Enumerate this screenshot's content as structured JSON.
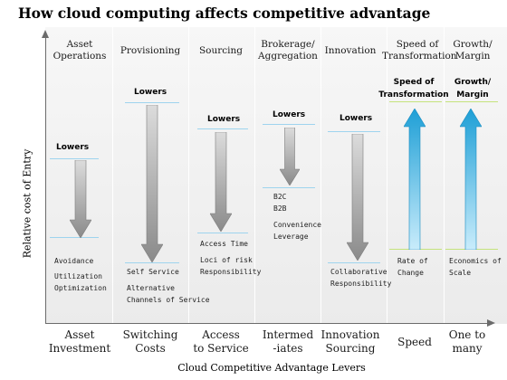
{
  "title": "How cloud computing affects competitive advantage",
  "axes": {
    "y_label": "Relative cost of Entry",
    "x_label": "Cloud Competitive Advantage Levers"
  },
  "columns": [
    {
      "id": "asset",
      "header": [
        "Asset",
        "Operations"
      ],
      "footer": [
        "Asset",
        "Investment"
      ],
      "tag": "Lowers",
      "direction": "down",
      "notes": [
        "Avoidance",
        "Utilization",
        "Optimization"
      ]
    },
    {
      "id": "provisioning",
      "header": [
        "Provisioning"
      ],
      "footer": [
        "Switching",
        "Costs"
      ],
      "tag": "Lowers",
      "direction": "down",
      "notes": [
        "Self Service",
        "Alternative",
        "Channels of Service"
      ]
    },
    {
      "id": "sourcing",
      "header": [
        "Sourcing"
      ],
      "footer": [
        "Access",
        "to Service"
      ],
      "tag": "Lowers",
      "direction": "down",
      "notes": [
        "Access Time",
        "Loci of risk",
        "Responsibility"
      ]
    },
    {
      "id": "brokerage",
      "header": [
        "Brokerage/",
        "Aggregation"
      ],
      "footer": [
        "Intermed",
        "-iates"
      ],
      "tag": "Lowers",
      "direction": "down",
      "notes": [
        "B2C",
        "B2B",
        "Convenience",
        "Leverage"
      ]
    },
    {
      "id": "innovation",
      "header": [
        "Innovation"
      ],
      "footer": [
        "Innovation",
        "Sourcing"
      ],
      "tag": "Lowers",
      "direction": "down",
      "notes": [
        "Collaborative",
        "Responsibility"
      ]
    },
    {
      "id": "speed",
      "header": [
        "Speed of",
        "Transformation"
      ],
      "footer": [
        "Speed"
      ],
      "tag": [
        "Speed of",
        "Transformation"
      ],
      "direction": "up",
      "notes": [
        "Rate of",
        "Change"
      ]
    },
    {
      "id": "growth",
      "header": [
        "Growth/",
        "Margin"
      ],
      "footer": [
        "One to",
        "many"
      ],
      "tag": [
        "Growth/",
        "Margin"
      ],
      "direction": "up",
      "notes": [
        "Economics of",
        "Scale"
      ]
    }
  ],
  "colors": {
    "down_arrow_light": "#dcdcdc",
    "down_arrow_dark": "#8a8a8a",
    "up_arrow_light": "#c9ecfb",
    "up_arrow_dark": "#1e9fd6",
    "guide_line": "#9ed4ee",
    "guide_line_green": "#c5e37c",
    "axis": "#6b6b6b"
  }
}
